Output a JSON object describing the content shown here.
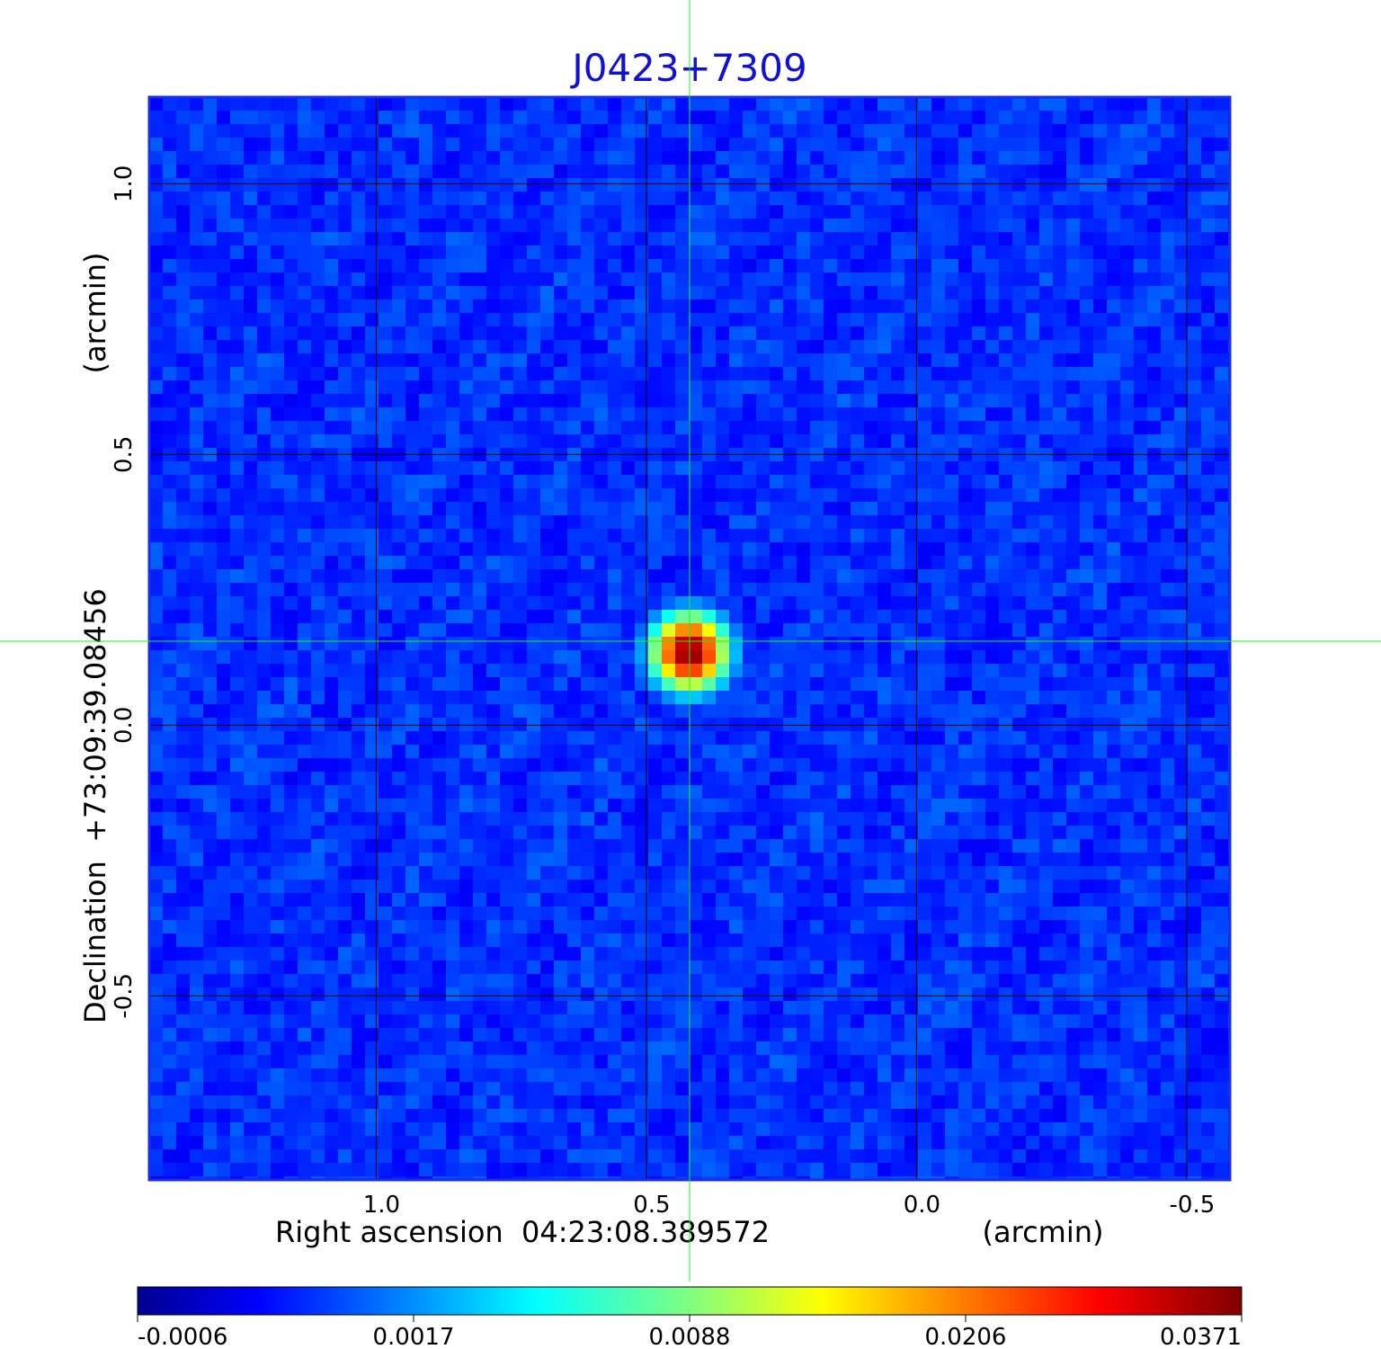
{
  "chart_data": {
    "type": "heatmap",
    "title": "J0423+7309",
    "xlabel": "Right ascension  04:23:08.389572",
    "xunit": "(arcmin)",
    "ylabel": "Declination  +73:09:39.08456",
    "yunit": "(arcmin)",
    "x_axis": {
      "lim": [
        1.42,
        -0.58
      ],
      "reversed": true,
      "ticks": [
        1.0,
        0.5,
        0.0,
        -0.5
      ],
      "tick_labels": [
        "1.0",
        "0.5",
        "0.0",
        "-0.5"
      ]
    },
    "y_axis": {
      "lim": [
        -0.84,
        1.16
      ],
      "ticks": [
        -0.5,
        0.0,
        0.5,
        1.0
      ],
      "tick_labels": [
        "-0.5",
        "0.0",
        "0.5",
        "1.0"
      ]
    },
    "grid": true,
    "source": {
      "ra_offset": 0.42,
      "dec_offset": 0.135,
      "peak": 0.0371,
      "fwhm_arcmin": 0.095
    },
    "crosshair": {
      "x": 0.42,
      "y": 0.155
    },
    "colorbar": {
      "orientation": "horizontal",
      "placement": "bottom",
      "colormap": "jet",
      "min": -0.0006,
      "max": 0.0371,
      "tick_labels": [
        "-0.0006",
        "0.0017",
        "0.0088",
        "0.0206",
        "0.0371"
      ]
    }
  }
}
